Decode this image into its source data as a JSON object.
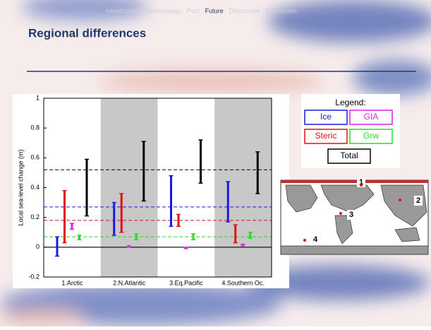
{
  "nav": [
    "Introduction",
    "Methodology",
    "Past",
    "Future",
    "Discussion",
    "Conclusion"
  ],
  "title": "Regional differences",
  "chart_data": {
    "type": "errorbar",
    "ylabel": "Local sea-level change (m)",
    "categories": [
      "1.Arctic",
      "2.N.Atlantic",
      "3.Eq.Pacific",
      "4.Southern Oc."
    ],
    "ylim": [
      -0.2,
      1
    ],
    "yticks": [
      -0.2,
      0,
      0.2,
      0.4,
      0.6,
      0.8,
      1
    ],
    "shaded": [
      false,
      true,
      false,
      true
    ],
    "legend_title": "Legend:",
    "series": [
      {
        "name": "Ice",
        "color": "#1a1adc",
        "low": [
          -0.06,
          0.08,
          0.14,
          0.17
        ],
        "high": [
          0.07,
          0.3,
          0.48,
          0.44
        ],
        "mean": 0.27
      },
      {
        "name": "Steric",
        "color": "#e01010",
        "low": [
          0.03,
          0.1,
          0.14,
          0.03
        ],
        "high": [
          0.38,
          0.36,
          0.22,
          0.15
        ],
        "mean": 0.18
      },
      {
        "name": "GIA",
        "color": "#e020e0",
        "low": [
          0.12,
          0,
          -0.01,
          0.01
        ],
        "high": [
          0.16,
          0.01,
          0,
          0.02
        ]
      },
      {
        "name": "Grw",
        "color": "#20e020",
        "low": [
          0.05,
          0.05,
          0.05,
          0.06
        ],
        "high": [
          0.08,
          0.09,
          0.09,
          0.1
        ],
        "mean": 0.07
      },
      {
        "name": "Total",
        "color": "#000000",
        "low": [
          0.21,
          0.31,
          0.43,
          0.36
        ],
        "high": [
          0.59,
          0.71,
          0.72,
          0.64
        ],
        "mean": 0.52
      }
    ]
  },
  "map_labels": [
    "1",
    "2",
    "3",
    "4"
  ]
}
